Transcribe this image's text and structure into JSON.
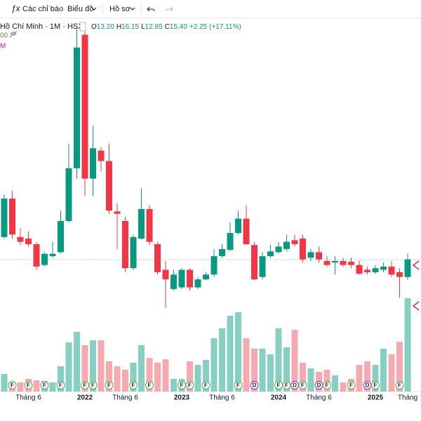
{
  "toolbar": {
    "indicators": "Các chỉ báo",
    "chart": "Biểu đồ",
    "profile": "Hồ sơ"
  },
  "legend": {
    "symbol": "Hồ Chí Minh · 1M · HSX",
    "ohlc": [
      {
        "key": "O",
        "value": "13.20"
      },
      {
        "key": "H",
        "value": "16.15"
      },
      {
        "key": "L",
        "value": "12.85"
      },
      {
        "key": "C",
        "value": "15.40"
      }
    ],
    "change": "+2.25 (+17.11%)",
    "fragment_1": "00",
    "fragment_2": "M"
  },
  "chart_data": {
    "type": "candlestick",
    "up_color": "#089981",
    "down_color": "#f23645",
    "volume_up_color": "#86cfc3",
    "volume_down_color": "#f6a9ae",
    "ylim": [
      8,
      46
    ],
    "vlim": [
      0,
      140
    ],
    "open": [
      18.2,
      23.0,
      18.2,
      18.0,
      17.3,
      14.7,
      15.8,
      16.3,
      20.2,
      26.8,
      43.5,
      25.5,
      29.0,
      27.7,
      21.4,
      20.2,
      14.3,
      18.0,
      21.7,
      17.3,
      14.1,
      11.7,
      11.9,
      14.1,
      11.9,
      12.9,
      13.5,
      15.8,
      16.6,
      18.7,
      20.5,
      17.2,
      13.2,
      15.8,
      16.3,
      16.7,
      17.8,
      18.0,
      15.6,
      16.3,
      15.2,
      15.0,
      15.2,
      15.1,
      14.7,
      14.1,
      13.8,
      14.1,
      14.5,
      13.8,
      13.2
    ],
    "high": [
      23.5,
      24.0,
      19.3,
      18.9,
      17.6,
      16.3,
      17.6,
      21.5,
      29.9,
      44.4,
      43.9,
      32.1,
      29.4,
      29.9,
      22.4,
      20.7,
      18.5,
      24.3,
      22.2,
      17.6,
      15.2,
      14.1,
      14.3,
      14.3,
      13.2,
      13.8,
      16.7,
      17.3,
      20.0,
      21.5,
      22.2,
      17.6,
      16.3,
      17.2,
      17.6,
      18.5,
      18.5,
      18.5,
      16.7,
      17.0,
      15.8,
      15.8,
      15.6,
      15.6,
      15.2,
      14.5,
      14.7,
      15.0,
      15.2,
      14.3,
      16.15
    ],
    "low": [
      18.0,
      18.0,
      17.2,
      17.0,
      14.1,
      14.5,
      15.6,
      16.1,
      20.0,
      25.5,
      23.3,
      23.3,
      26.4,
      21.1,
      16.7,
      13.8,
      14.1,
      17.9,
      17.2,
      13.5,
      9.3,
      11.5,
      11.7,
      11.5,
      11.7,
      12.8,
      13.2,
      15.6,
      16.4,
      18.5,
      17.2,
      12.8,
      12.9,
      15.6,
      16.1,
      16.4,
      17.0,
      15.0,
      15.2,
      15.0,
      14.5,
      13.5,
      14.5,
      14.3,
      13.5,
      13.5,
      13.6,
      13.8,
      13.2,
      10.6,
      12.85
    ],
    "close": [
      23.0,
      18.5,
      17.6,
      17.3,
      14.5,
      16.1,
      16.1,
      20.2,
      26.8,
      41.9,
      25.5,
      29.3,
      27.7,
      21.5,
      21.1,
      14.3,
      18.2,
      21.7,
      17.6,
      13.8,
      12.9,
      13.5,
      14.1,
      11.9,
      12.9,
      13.5,
      15.8,
      16.7,
      18.7,
      20.5,
      17.3,
      12.9,
      15.8,
      16.4,
      17.0,
      17.6,
      17.3,
      15.4,
      16.3,
      15.4,
      14.7,
      15.2,
      14.7,
      14.7,
      13.6,
      13.8,
      14.3,
      14.5,
      13.5,
      13.2,
      15.4
    ],
    "volume": [
      25,
      13,
      13,
      18,
      16,
      15,
      13,
      36,
      70,
      85,
      66,
      73,
      73,
      43,
      36,
      31,
      41,
      66,
      48,
      41,
      46,
      18,
      18,
      43,
      38,
      45,
      76,
      90,
      108,
      113,
      76,
      61,
      61,
      53,
      90,
      63,
      88,
      41,
      33,
      28,
      31,
      23,
      13,
      18,
      38,
      43,
      38,
      61,
      53,
      71,
      133
    ],
    "x_labels": [
      {
        "index": 3,
        "label": "Tháng 6"
      },
      {
        "index": 10,
        "label": "2022"
      },
      {
        "index": 15,
        "label": "Tháng 6"
      },
      {
        "index": 22,
        "label": "2023"
      },
      {
        "index": 27,
        "label": "Tháng 6"
      },
      {
        "index": 34,
        "label": "2024"
      },
      {
        "index": 39,
        "label": "Tháng 6"
      },
      {
        "index": 46,
        "label": "2025"
      },
      {
        "index": 50,
        "label": "Tháng"
      }
    ],
    "events": [
      {
        "index": 1,
        "label": "F"
      },
      {
        "index": 3,
        "label": "F"
      },
      {
        "index": 5,
        "label": "F"
      },
      {
        "index": 7,
        "label": "F"
      },
      {
        "index": 10,
        "label": "F"
      },
      {
        "index": 11,
        "label": "F"
      },
      {
        "index": 13,
        "label": "F"
      },
      {
        "index": 16,
        "label": "F"
      },
      {
        "index": 18,
        "label": "F"
      },
      {
        "index": 22,
        "label": "F"
      },
      {
        "index": 23,
        "label": "F"
      },
      {
        "index": 25,
        "label": "F"
      },
      {
        "index": 29,
        "label": "F"
      },
      {
        "index": 31,
        "label": "D"
      },
      {
        "index": 34,
        "label": "F"
      },
      {
        "index": 35,
        "label": "F"
      },
      {
        "index": 36,
        "label": "D"
      },
      {
        "index": 37,
        "label": "F"
      },
      {
        "index": 39,
        "label": "D"
      },
      {
        "index": 40,
        "label": "F"
      },
      {
        "index": 43,
        "label": "F"
      },
      {
        "index": 45,
        "label": "D"
      },
      {
        "index": 46,
        "label": "F"
      },
      {
        "index": 49,
        "label": "F"
      }
    ]
  }
}
